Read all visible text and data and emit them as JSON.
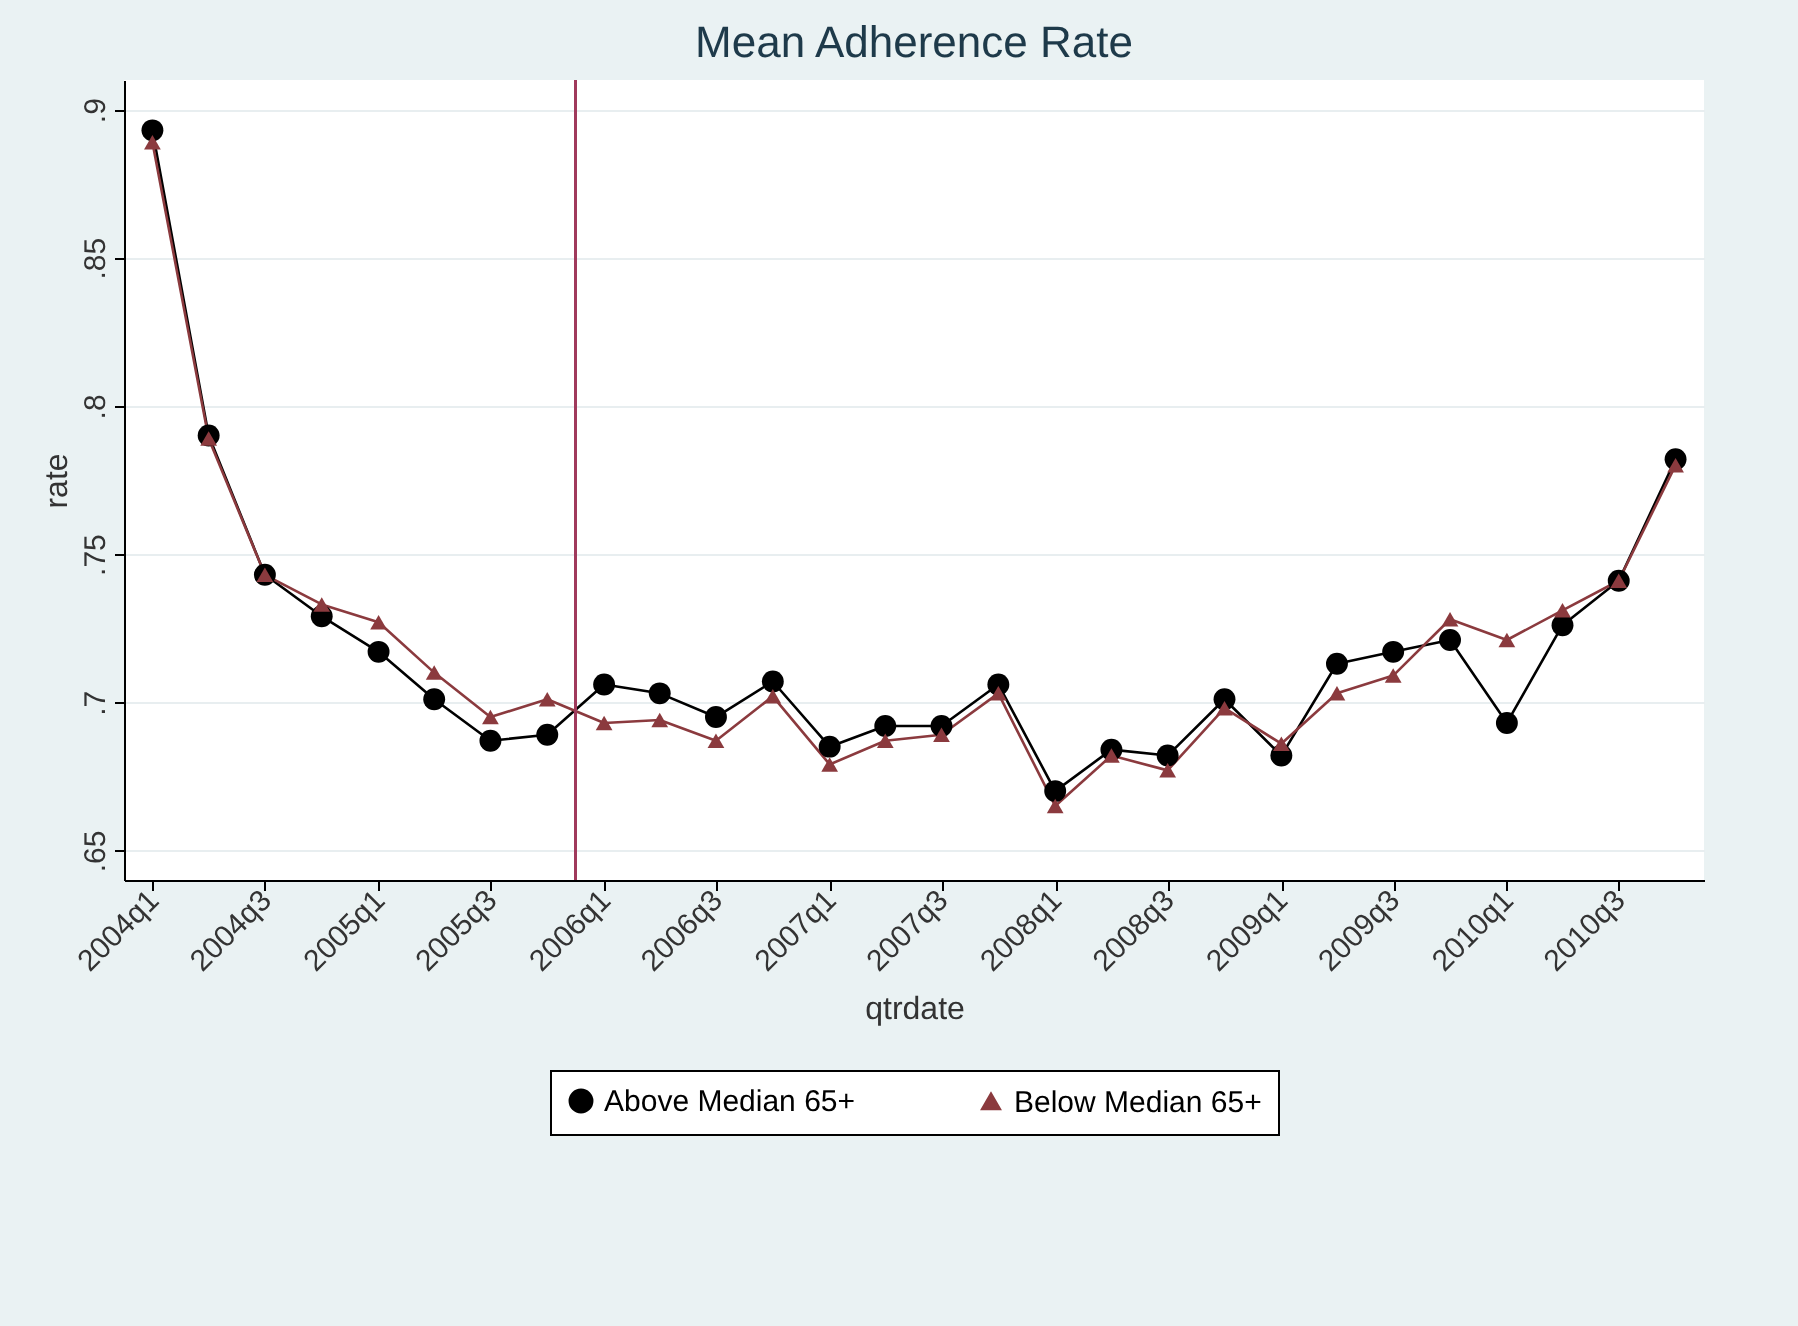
{
  "chart_data": {
    "type": "line",
    "title": "Mean Adherence Rate",
    "xlabel": "qtrdate",
    "ylabel": "rate",
    "x": [
      "2004-01",
      "2004-04",
      "2004-07",
      "2004-10",
      "2005-01",
      "2005-04",
      "2005-07",
      "2005-10",
      "2006-01",
      "2006-04",
      "2006-07",
      "2006-10",
      "2007-01",
      "2007-04",
      "2007-07",
      "2007-10",
      "2008-01",
      "2008-04",
      "2008-07",
      "2008-10",
      "2009-01",
      "2009-04",
      "2009-07",
      "2009-10",
      "2010-01",
      "2010-04",
      "2010-07",
      "2010-10"
    ],
    "series": [
      {
        "name": "Above Median 65+",
        "color": "#000000",
        "marker": "circle",
        "values": [
          0.893,
          0.79,
          0.743,
          0.729,
          0.717,
          0.701,
          0.687,
          0.689,
          0.706,
          0.703,
          0.695,
          0.707,
          0.685,
          0.692,
          0.692,
          0.706,
          0.67,
          0.684,
          0.682,
          0.701,
          0.682,
          0.713,
          0.717,
          0.721,
          0.693,
          0.726,
          0.741,
          0.782
        ]
      },
      {
        "name": "Below Median 65+",
        "color": "#8b3a3e",
        "marker": "triangle",
        "values": [
          0.889,
          0.789,
          0.743,
          0.733,
          0.727,
          0.71,
          0.695,
          0.701,
          0.693,
          0.694,
          0.687,
          0.702,
          0.679,
          0.687,
          0.689,
          0.703,
          0.665,
          0.682,
          0.677,
          0.698,
          0.686,
          0.703,
          0.709,
          0.728,
          0.721,
          0.731,
          0.741,
          0.78
        ]
      }
    ],
    "xlim": [
      "2003-11-16",
      "2010-11-16"
    ],
    "xticks": [
      {
        "value": "2004-01",
        "label": "2004q1"
      },
      {
        "value": "2004-07",
        "label": "2004q3"
      },
      {
        "value": "2005-01",
        "label": "2005q1"
      },
      {
        "value": "2005-07",
        "label": "2005q3"
      },
      {
        "value": "2006-01",
        "label": "2006q1"
      },
      {
        "value": "2006-07",
        "label": "2006q3"
      },
      {
        "value": "2007-01",
        "label": "2007q1"
      },
      {
        "value": "2007-07",
        "label": "2007q3"
      },
      {
        "value": "2008-01",
        "label": "2008q1"
      },
      {
        "value": "2008-07",
        "label": "2008q3"
      },
      {
        "value": "2009-01",
        "label": "2009q1"
      },
      {
        "value": "2009-07",
        "label": "2009q3"
      },
      {
        "value": "2010-01",
        "label": "2010q1"
      },
      {
        "value": "2010-07",
        "label": "2010q3"
      }
    ],
    "ylim": [
      0.64,
      0.91
    ],
    "yticks": [
      {
        "value": 0.65,
        "label": ".65"
      },
      {
        "value": 0.7,
        "label": ".7"
      },
      {
        "value": 0.75,
        "label": ".75"
      },
      {
        "value": 0.8,
        "label": ".8"
      },
      {
        "value": 0.85,
        "label": ".85"
      },
      {
        "value": 0.9,
        "label": ".9"
      }
    ],
    "ref_lines": [
      {
        "axis": "x",
        "value": "2005-11-16",
        "color": "#a03a5c"
      }
    ],
    "grid": "y",
    "legend": "bottom",
    "line_style": "solid"
  }
}
